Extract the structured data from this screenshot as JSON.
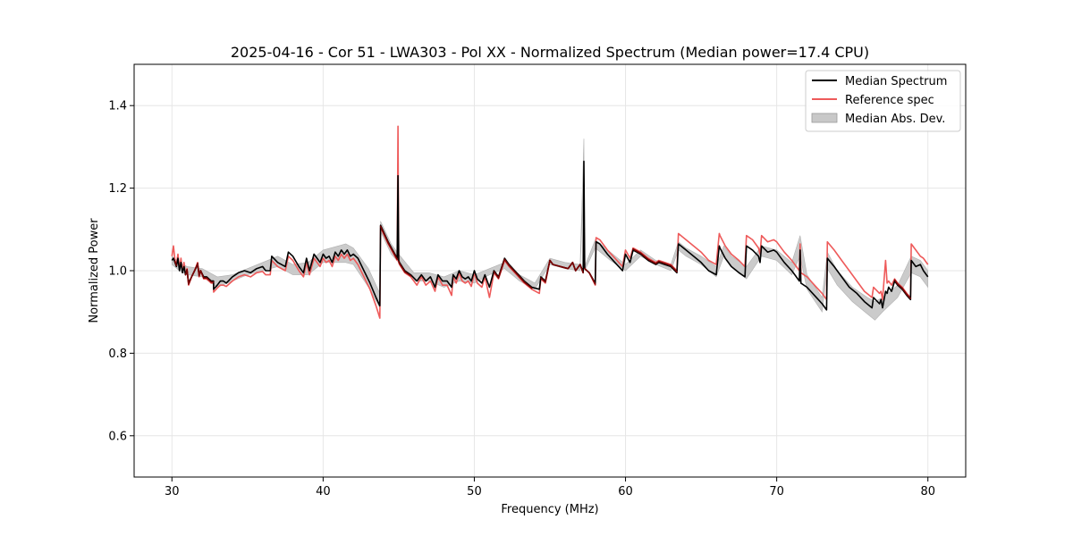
{
  "chart_data": {
    "type": "line",
    "title": "2025-04-16 - Cor 51 - LWA303 - Pol XX - Normalized Spectrum (Median power=17.4 CPU)",
    "xlabel": "Frequency (MHz)",
    "ylabel": "Normalized Power",
    "xlim": [
      27.5,
      82.5
    ],
    "ylim": [
      0.5,
      1.5
    ],
    "x_ticks": [
      30,
      40,
      50,
      60,
      70,
      80
    ],
    "y_ticks": [
      0.6,
      0.8,
      1.0,
      1.2,
      1.4
    ],
    "x_tick_labels": [
      "30",
      "40",
      "50",
      "60",
      "70",
      "80"
    ],
    "y_tick_labels": [
      "0.6",
      "0.8",
      "1.0",
      "1.2",
      "1.4"
    ],
    "grid": true,
    "legend_position": "top-right",
    "colors": {
      "median": "#000000",
      "reference": "#ee5a5a",
      "mad": "#c8c8c8",
      "grid": "#e6e6e6"
    },
    "legend": [
      {
        "label": "Median Spectrum",
        "kind": "line",
        "color": "#000000"
      },
      {
        "label": "Reference spec",
        "kind": "line",
        "color": "#ee5a5a"
      },
      {
        "label": "Median Abs. Dev.",
        "kind": "patch",
        "color": "#c8c8c8"
      }
    ],
    "series": [
      {
        "name": "Median Spectrum",
        "x": [
          30.0,
          30.1,
          30.2,
          30.3,
          30.4,
          30.5,
          30.6,
          30.7,
          30.8,
          30.9,
          31.0,
          31.1,
          31.3,
          31.5,
          31.7,
          31.8,
          31.9,
          32.1,
          32.3,
          32.6,
          32.75,
          32.76,
          33.0,
          33.2,
          33.4,
          33.6,
          34.0,
          34.4,
          34.8,
          35.2,
          35.6,
          36.0,
          36.2,
          36.5,
          36.6,
          37.0,
          37.5,
          37.7,
          38.0,
          38.4,
          38.7,
          38.9,
          39.1,
          39.4,
          39.6,
          39.8,
          40.0,
          40.2,
          40.4,
          40.6,
          40.8,
          41.0,
          41.2,
          41.4,
          41.6,
          41.8,
          42.0,
          42.3,
          42.7,
          43.1,
          43.5,
          43.75,
          43.8,
          44.3,
          44.9,
          44.95,
          45.0,
          45.05,
          45.4,
          45.8,
          46.2,
          46.5,
          46.8,
          47.1,
          47.4,
          47.6,
          47.9,
          48.2,
          48.5,
          48.6,
          48.8,
          49.0,
          49.2,
          49.4,
          49.6,
          49.8,
          50.0,
          50.2,
          50.5,
          50.7,
          51.0,
          51.3,
          51.6,
          52.0,
          52.3,
          52.8,
          53.3,
          53.8,
          54.3,
          54.4,
          54.7,
          55.0,
          55.2,
          55.7,
          56.2,
          56.5,
          56.7,
          57.0,
          57.2,
          57.25,
          57.3,
          57.6,
          58.0,
          58.05,
          58.3,
          58.8,
          59.3,
          59.8,
          60.0,
          60.3,
          60.5,
          61.0,
          61.5,
          62.0,
          62.2,
          62.6,
          63.0,
          63.4,
          63.5,
          64.0,
          64.5,
          65.0,
          65.5,
          66.0,
          66.2,
          66.25,
          66.6,
          67.0,
          67.5,
          67.9,
          68.0,
          68.4,
          68.8,
          68.9,
          69.0,
          69.4,
          69.8,
          70.0,
          70.5,
          71.0,
          71.5,
          71.55,
          71.6,
          72.0,
          72.5,
          73.0,
          73.3,
          73.35,
          73.8,
          74.3,
          74.8,
          75.3,
          75.8,
          76.3,
          76.4,
          76.8,
          76.9,
          77.0,
          77.2,
          77.3,
          77.4,
          77.6,
          77.8,
          78.0,
          78.3,
          78.6,
          78.85,
          78.9,
          79.2,
          79.5,
          79.7,
          80.0
        ],
        "y": [
          1.025,
          1.03,
          1.02,
          1.01,
          1.03,
          1.0,
          1.02,
          0.995,
          1.01,
          0.99,
          1.0,
          0.97,
          0.985,
          1.0,
          1.015,
          0.99,
          1.0,
          0.985,
          0.985,
          0.975,
          0.975,
          0.955,
          0.965,
          0.975,
          0.975,
          0.97,
          0.985,
          0.995,
          1.0,
          0.995,
          1.005,
          1.01,
          1.0,
          1.0,
          1.035,
          1.02,
          1.01,
          1.045,
          1.035,
          1.01,
          0.995,
          1.03,
          1.0,
          1.04,
          1.03,
          1.02,
          1.04,
          1.03,
          1.035,
          1.02,
          1.045,
          1.035,
          1.05,
          1.04,
          1.05,
          1.035,
          1.04,
          1.03,
          1.0,
          0.97,
          0.935,
          0.915,
          1.11,
          1.07,
          1.03,
          1.23,
          1.025,
          1.02,
          1.0,
          0.99,
          0.975,
          0.99,
          0.975,
          0.985,
          0.96,
          0.99,
          0.975,
          0.975,
          0.96,
          0.99,
          0.98,
          1.0,
          0.985,
          0.98,
          0.985,
          0.975,
          1.0,
          0.98,
          0.97,
          0.99,
          0.96,
          1.0,
          0.985,
          1.03,
          1.015,
          0.995,
          0.975,
          0.96,
          0.955,
          0.985,
          0.975,
          1.025,
          1.015,
          1.01,
          1.005,
          1.02,
          1.0,
          1.015,
          0.995,
          1.265,
          1.005,
          0.995,
          0.97,
          1.07,
          1.065,
          1.04,
          1.02,
          1.0,
          1.04,
          1.02,
          1.05,
          1.04,
          1.025,
          1.015,
          1.02,
          1.015,
          1.01,
          0.995,
          1.065,
          1.05,
          1.035,
          1.02,
          1.0,
          0.99,
          1.06,
          1.055,
          1.03,
          1.01,
          0.995,
          0.985,
          1.06,
          1.05,
          1.035,
          1.02,
          1.06,
          1.045,
          1.05,
          1.045,
          1.02,
          1.0,
          0.975,
          1.05,
          0.97,
          0.96,
          0.94,
          0.92,
          0.905,
          1.03,
          1.01,
          0.985,
          0.96,
          0.945,
          0.925,
          0.91,
          0.935,
          0.92,
          0.93,
          0.91,
          0.95,
          0.945,
          0.96,
          0.95,
          0.975,
          0.965,
          0.955,
          0.94,
          0.93,
          1.025,
          1.01,
          1.015,
          1.0,
          0.985
        ]
      },
      {
        "name": "Reference spec",
        "x": [
          30.0,
          30.1,
          30.2,
          30.3,
          30.4,
          30.5,
          30.6,
          30.7,
          30.8,
          30.9,
          31.0,
          31.1,
          31.3,
          31.5,
          31.7,
          31.8,
          31.9,
          32.1,
          32.3,
          32.6,
          32.75,
          32.76,
          33.0,
          33.2,
          33.4,
          33.6,
          34.0,
          34.4,
          34.8,
          35.2,
          35.6,
          36.0,
          36.2,
          36.5,
          36.6,
          37.0,
          37.5,
          37.7,
          38.0,
          38.4,
          38.7,
          38.9,
          39.1,
          39.4,
          39.6,
          39.8,
          40.0,
          40.2,
          40.4,
          40.6,
          40.8,
          41.0,
          41.2,
          41.4,
          41.6,
          41.8,
          42.0,
          42.3,
          42.7,
          43.1,
          43.5,
          43.75,
          43.8,
          44.3,
          44.9,
          44.95,
          45.0,
          45.05,
          45.4,
          45.8,
          46.2,
          46.5,
          46.8,
          47.1,
          47.4,
          47.6,
          47.9,
          48.2,
          48.5,
          48.6,
          48.8,
          49.0,
          49.2,
          49.4,
          49.6,
          49.8,
          50.0,
          50.2,
          50.5,
          50.7,
          51.0,
          51.3,
          51.6,
          52.0,
          52.3,
          52.8,
          53.3,
          53.8,
          54.3,
          54.4,
          54.7,
          55.0,
          55.2,
          55.7,
          56.2,
          56.5,
          56.7,
          57.0,
          57.2,
          57.25,
          57.3,
          57.6,
          58.0,
          58.05,
          58.3,
          58.8,
          59.3,
          59.8,
          60.0,
          60.3,
          60.5,
          61.0,
          61.5,
          62.0,
          62.2,
          62.6,
          63.0,
          63.4,
          63.5,
          64.0,
          64.5,
          65.0,
          65.5,
          66.0,
          66.2,
          66.25,
          66.6,
          67.0,
          67.5,
          67.9,
          68.0,
          68.4,
          68.8,
          68.9,
          69.0,
          69.4,
          69.8,
          70.0,
          70.5,
          71.0,
          71.5,
          71.55,
          71.6,
          72.0,
          72.5,
          73.0,
          73.3,
          73.35,
          73.8,
          74.3,
          74.8,
          75.3,
          75.8,
          76.3,
          76.4,
          76.8,
          76.9,
          77.0,
          77.2,
          77.3,
          77.4,
          77.6,
          77.8,
          78.0,
          78.3,
          78.6,
          78.85,
          78.9,
          79.2,
          79.5,
          79.7,
          80.0
        ],
        "y": [
          1.035,
          1.06,
          1.025,
          1.015,
          1.04,
          1.005,
          1.03,
          0.995,
          1.02,
          0.99,
          1.005,
          0.965,
          0.985,
          1.0,
          1.02,
          0.985,
          1.0,
          0.98,
          0.98,
          0.97,
          0.97,
          0.948,
          0.958,
          0.965,
          0.965,
          0.962,
          0.975,
          0.985,
          0.99,
          0.985,
          0.995,
          0.998,
          0.99,
          0.99,
          1.025,
          1.01,
          1.0,
          1.035,
          1.025,
          1.0,
          0.985,
          1.02,
          0.99,
          1.03,
          1.02,
          1.01,
          1.03,
          1.02,
          1.025,
          1.01,
          1.035,
          1.025,
          1.04,
          1.03,
          1.04,
          1.025,
          1.03,
          1.015,
          0.985,
          0.955,
          0.915,
          0.885,
          1.105,
          1.065,
          1.025,
          1.35,
          1.02,
          1.015,
          0.995,
          0.985,
          0.965,
          0.985,
          0.965,
          0.975,
          0.95,
          0.985,
          0.965,
          0.965,
          0.94,
          0.985,
          0.97,
          0.995,
          0.975,
          0.97,
          0.975,
          0.962,
          0.995,
          0.97,
          0.96,
          0.985,
          0.935,
          0.995,
          0.98,
          1.025,
          1.01,
          0.99,
          0.97,
          0.955,
          0.945,
          0.98,
          0.97,
          1.025,
          1.015,
          1.01,
          1.005,
          1.02,
          1.0,
          1.015,
          0.995,
          1.12,
          1.005,
          0.995,
          0.965,
          1.08,
          1.075,
          1.05,
          1.03,
          1.01,
          1.05,
          1.03,
          1.055,
          1.045,
          1.03,
          1.02,
          1.025,
          1.02,
          1.015,
          1.0,
          1.09,
          1.075,
          1.06,
          1.045,
          1.025,
          1.015,
          1.09,
          1.085,
          1.06,
          1.04,
          1.025,
          1.01,
          1.085,
          1.075,
          1.055,
          1.04,
          1.085,
          1.07,
          1.075,
          1.07,
          1.045,
          1.025,
          1.0,
          1.065,
          0.995,
          0.985,
          0.965,
          0.945,
          0.93,
          1.07,
          1.05,
          1.025,
          1.0,
          0.975,
          0.95,
          0.935,
          0.96,
          0.945,
          0.95,
          0.93,
          1.025,
          0.97,
          0.975,
          0.965,
          0.98,
          0.97,
          0.96,
          0.945,
          0.935,
          1.065,
          1.05,
          1.035,
          1.03,
          1.015
        ]
      },
      {
        "name": "Median Abs. Dev.",
        "x": [
          30.0,
          30.5,
          31.0,
          32.0,
          33.0,
          34.0,
          35.0,
          36.0,
          37.0,
          38.0,
          39.0,
          40.0,
          41.0,
          41.5,
          42.0,
          43.0,
          43.75,
          43.8,
          44.5,
          45.0,
          46.0,
          47.0,
          48.0,
          49.0,
          50.0,
          51.0,
          52.0,
          53.0,
          54.0,
          55.0,
          56.0,
          57.0,
          57.25,
          57.3,
          58.0,
          59.0,
          60.0,
          61.0,
          62.0,
          63.0,
          63.5,
          64.0,
          65.0,
          66.0,
          66.5,
          67.0,
          68.0,
          69.0,
          70.0,
          71.0,
          71.55,
          72.0,
          73.0,
          73.35,
          74.0,
          75.0,
          76.0,
          76.5,
          77.0,
          78.0,
          78.9,
          79.5,
          80.0
        ],
        "lower": [
          1.015,
          1.0,
          0.99,
          0.985,
          0.96,
          0.975,
          0.99,
          1.0,
          1.01,
          0.99,
          0.99,
          1.02,
          1.02,
          1.02,
          1.015,
          0.96,
          0.91,
          1.095,
          1.04,
          1.02,
          0.975,
          0.975,
          0.96,
          0.975,
          0.97,
          0.99,
          1.005,
          0.975,
          0.955,
          1.015,
          1.005,
          1.0,
          1.235,
          1.0,
          1.055,
          1.025,
          1.0,
          1.035,
          1.015,
          1.0,
          1.05,
          1.035,
          1.015,
          0.985,
          1.035,
          1.01,
          0.98,
          1.035,
          1.025,
          0.99,
          1.035,
          0.955,
          0.9,
          1.005,
          0.965,
          0.925,
          0.895,
          0.88,
          0.9,
          0.935,
          0.995,
          0.985,
          0.96
        ],
        "upper": [
          1.035,
          1.02,
          1.01,
          1.005,
          0.985,
          0.99,
          1.005,
          1.02,
          1.035,
          1.015,
          1.02,
          1.05,
          1.06,
          1.065,
          1.055,
          1.005,
          0.945,
          1.12,
          1.065,
          1.04,
          0.995,
          0.995,
          0.985,
          1.0,
          0.99,
          1.005,
          1.02,
          0.99,
          0.97,
          1.03,
          1.02,
          1.015,
          1.32,
          1.01,
          1.075,
          1.045,
          1.015,
          1.05,
          1.025,
          1.015,
          1.07,
          1.055,
          1.035,
          1.01,
          1.06,
          1.035,
          1.01,
          1.06,
          1.05,
          1.02,
          1.085,
          0.99,
          0.935,
          1.045,
          1.0,
          0.96,
          0.935,
          0.925,
          0.935,
          0.965,
          1.035,
          1.025,
          1.0
        ]
      }
    ]
  }
}
